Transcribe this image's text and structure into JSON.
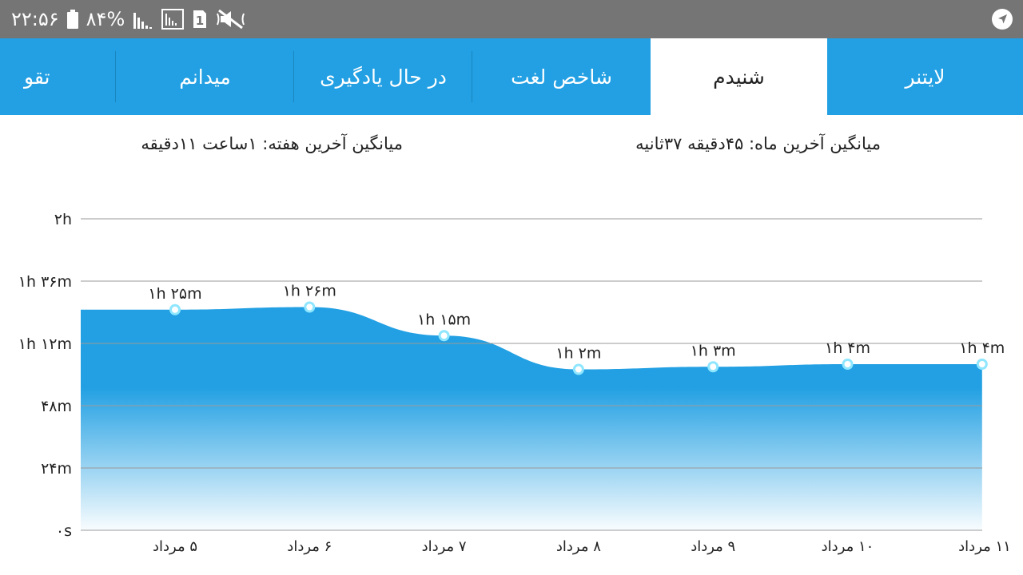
{
  "status_bar": {
    "time": "۲۲:۵۶",
    "battery": "۸۴%",
    "sim_slot": "1",
    "icons": [
      "battery-icon",
      "signal-icon",
      "signal-sim-icon",
      "sim-1-icon",
      "mute-icon",
      "location-arrow-icon"
    ]
  },
  "tabs": [
    {
      "label": "لایتنر",
      "active": false
    },
    {
      "label": "شنیدم",
      "active": true
    },
    {
      "label": "شاخص لغت",
      "active": false
    },
    {
      "label": "در حال یادگیری",
      "active": false
    },
    {
      "label": "میدانم",
      "active": false
    },
    {
      "label": "تقو",
      "active": false
    }
  ],
  "averages": {
    "month": "میانگین آخرین ماه: ۴۵دقیقه  ۳۷ثانیه",
    "week": "میانگین آخرین هفته: ۱ساعت  ۱۱دقیقه"
  },
  "colors": {
    "accent": "#22a0e3",
    "status_bar": "#757575",
    "point_stroke": "#8ee6ff"
  },
  "chart_data": {
    "type": "area",
    "y_unit": "minutes",
    "ylim": [
      0,
      120
    ],
    "y_ticks": [
      {
        "value": 0,
        "label": "۰s"
      },
      {
        "value": 24,
        "label": "۲۴m"
      },
      {
        "value": 48,
        "label": "۴۸m"
      },
      {
        "value": 72,
        "label": "۱h ۱۲m"
      },
      {
        "value": 96,
        "label": "۱h ۳۶m"
      },
      {
        "value": 120,
        "label": "۲h"
      }
    ],
    "categories": [
      "۵ مرداد",
      "۶ مرداد",
      "۷ مرداد",
      "۸ مرداد",
      "۹ مرداد",
      "۱۰ مرداد",
      "۱۱ مرداد"
    ],
    "values": [
      85,
      86,
      75,
      62,
      63,
      64,
      64
    ],
    "point_labels": [
      "۱h ۲۵m",
      "۱h ۲۶m",
      "۱h ۱۵m",
      "۱h ۲m",
      "۱h ۳m",
      "۱h ۴m",
      "۱h ۴m"
    ],
    "grid": true,
    "legend": "none"
  }
}
